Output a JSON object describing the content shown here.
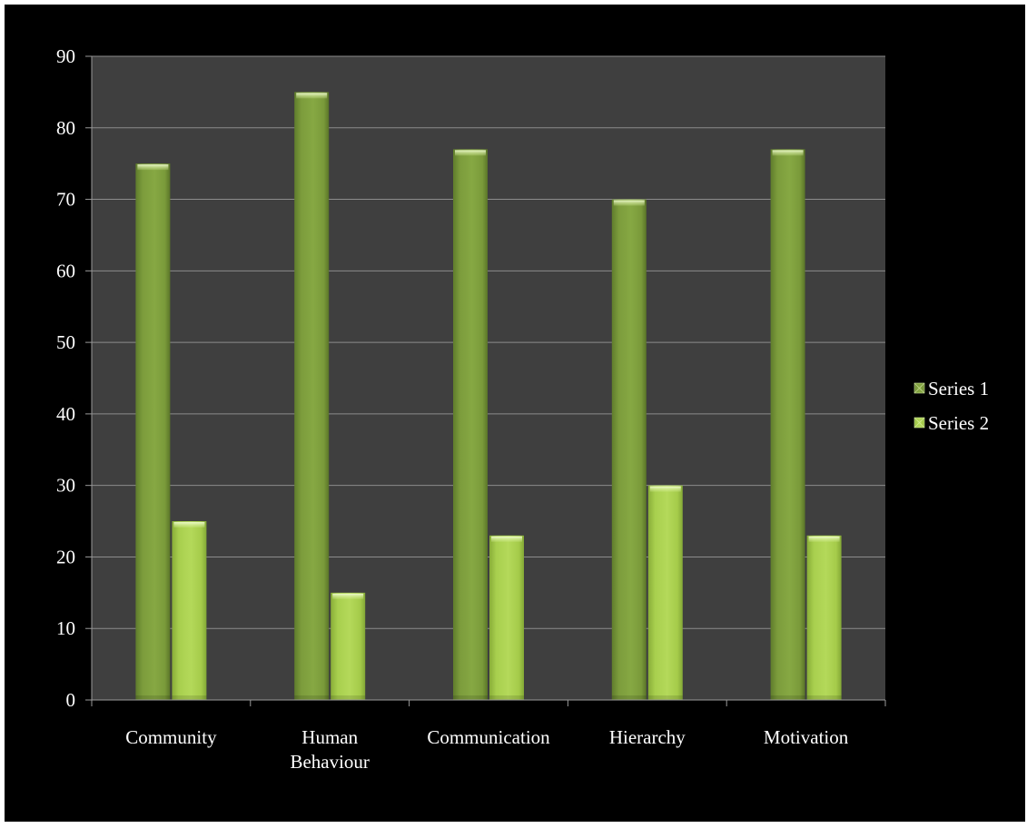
{
  "chart_data": {
    "type": "bar",
    "title": "",
    "xlabel": "",
    "ylabel": "",
    "categories": [
      [
        "Community"
      ],
      [
        "Human",
        "Behaviour"
      ],
      [
        "Communication"
      ],
      [
        "Hierarchy"
      ],
      [
        "Motivation"
      ]
    ],
    "series": [
      {
        "name": "Series 1",
        "values": [
          75,
          85,
          77,
          70,
          77
        ],
        "color": "#7a9a3a"
      },
      {
        "name": "Series 2",
        "values": [
          25,
          15,
          23,
          30,
          23
        ],
        "color": "#a6cc4a"
      }
    ],
    "ylim": [
      0,
      90
    ],
    "yticks": [
      "0",
      "10",
      "20",
      "30",
      "40",
      "50",
      "60",
      "70",
      "80",
      "90"
    ],
    "grid": true,
    "legend_position": "right",
    "colors": {
      "background": "#000000",
      "plot_area": "#3f3f3f",
      "gridline": "#8c8c8c",
      "axis": "#9a9a9a",
      "text": "#ffffff"
    }
  }
}
